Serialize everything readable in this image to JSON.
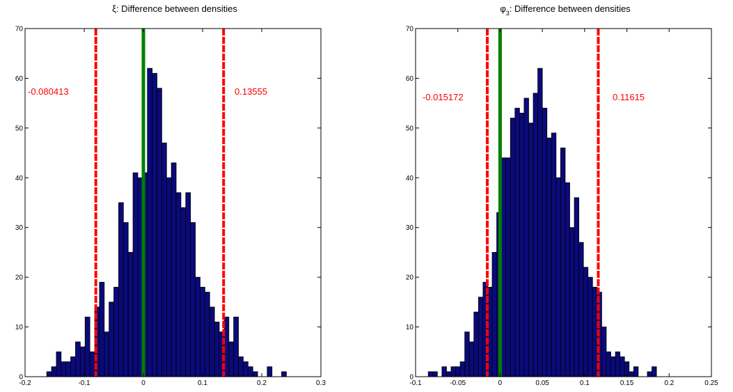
{
  "colors": {
    "bar_fill": "#0a0a7a",
    "bar_edge": "#000000",
    "interval_line": "#ff0000",
    "zero_line": "#008000",
    "axis": "#000000",
    "background": "#ffffff"
  },
  "chart_data": [
    {
      "type": "bar",
      "title": "ξ: Difference between densities",
      "title_symbol": "ξ",
      "title_subscript": "",
      "title_text": ": Difference between densities",
      "xlim": [
        -0.2,
        0.3
      ],
      "ylim": [
        0,
        70
      ],
      "xticks": [
        -0.2,
        -0.1,
        0,
        0.1,
        0.2,
        0.3
      ],
      "xtick_labels": [
        "-0.2",
        "-0.1",
        "0",
        "0.1",
        "0.2",
        "0.3"
      ],
      "yticks": [
        0,
        10,
        20,
        30,
        40,
        50,
        60,
        70
      ],
      "ytick_labels": [
        "0",
        "10",
        "20",
        "30",
        "40",
        "50",
        "60",
        "70"
      ],
      "bin_width": 0.0081,
      "bin_centers": [
        -0.1674,
        -0.1593,
        -0.1512,
        -0.1431,
        -0.135,
        -0.1269,
        -0.1188,
        -0.1107,
        -0.1026,
        -0.0945,
        -0.0864,
        -0.0783,
        -0.0702,
        -0.0621,
        -0.054,
        -0.0459,
        -0.0378,
        -0.0297,
        -0.0216,
        -0.0135,
        -0.0054,
        0.0027,
        0.0108,
        0.0189,
        0.027,
        0.0351,
        0.0432,
        0.0513,
        0.0594,
        0.0675,
        0.0756,
        0.0837,
        0.0918,
        0.0999,
        0.108,
        0.1161,
        0.1242,
        0.1323,
        0.1404,
        0.1485,
        0.1566,
        0.1647,
        0.1728,
        0.1809,
        0.189,
        0.1971,
        0.2052,
        0.2133,
        0.2214,
        0.2295,
        0.2376
      ],
      "values": [
        0,
        1,
        2,
        5,
        3,
        3,
        4,
        7,
        6,
        12,
        5,
        14,
        19,
        9,
        15,
        18,
        35,
        31,
        25,
        41,
        40,
        41,
        62,
        61,
        58,
        47,
        40,
        43,
        37,
        34,
        37,
        31,
        20,
        18,
        17,
        14,
        11,
        9,
        12,
        7,
        12,
        4,
        3,
        2,
        1,
        0,
        0,
        2,
        0,
        0,
        1
      ],
      "annotations": [
        {
          "text": "-0.080413",
          "x": -0.080413,
          "color": "red",
          "line_style": "dashed"
        },
        {
          "text": "0.13555",
          "x": 0.13555,
          "color": "red",
          "line_style": "dashed"
        }
      ],
      "reference_line": {
        "x": 0,
        "color": "green"
      }
    },
    {
      "type": "bar",
      "title": "φ₃: Difference between densities",
      "title_symbol": "φ",
      "title_subscript": "3",
      "title_text": ": Difference between densities",
      "xlim": [
        -0.1,
        0.25
      ],
      "ylim": [
        0,
        70
      ],
      "xticks": [
        -0.1,
        -0.05,
        0,
        0.05,
        0.1,
        0.15,
        0.2,
        0.25
      ],
      "xtick_labels": [
        "-0.1",
        "-0.05",
        "0",
        "0.05",
        "0.1",
        "0.15",
        "0.2",
        "0.25"
      ],
      "yticks": [
        0,
        10,
        20,
        30,
        40,
        50,
        60,
        70
      ],
      "ytick_labels": [
        "0",
        "10",
        "20",
        "30",
        "40",
        "50",
        "60",
        "70"
      ],
      "bin_width": 0.0054,
      "bin_centers": [
        -0.0823,
        -0.0769,
        -0.0715,
        -0.0661,
        -0.0607,
        -0.0553,
        -0.0499,
        -0.0445,
        -0.0391,
        -0.0337,
        -0.0283,
        -0.0229,
        -0.0175,
        -0.0121,
        -0.0067,
        -0.0013,
        0.0041,
        0.0095,
        0.0149,
        0.0203,
        0.0257,
        0.0311,
        0.0365,
        0.0419,
        0.0473,
        0.0527,
        0.0581,
        0.0635,
        0.0689,
        0.0743,
        0.0797,
        0.0851,
        0.0905,
        0.0959,
        0.1013,
        0.1067,
        0.1121,
        0.1175,
        0.1229,
        0.1283,
        0.1337,
        0.1391,
        0.1445,
        0.1499,
        0.1553,
        0.1607,
        0.1661,
        0.1715,
        0.1769,
        0.1823,
        0.1877
      ],
      "values": [
        1,
        1,
        0,
        2,
        1,
        2,
        2,
        3,
        9,
        7,
        13,
        16,
        19,
        18,
        25,
        33,
        44,
        44,
        52,
        54,
        53,
        56,
        51,
        57,
        62,
        54,
        48,
        49,
        40,
        46,
        39,
        30,
        36,
        27,
        22,
        20,
        18,
        17,
        10,
        5,
        4,
        5,
        4,
        3,
        1,
        2,
        0,
        0,
        1,
        2,
        0
      ],
      "annotations": [
        {
          "text": "-0.015172",
          "x": -0.015172,
          "color": "red",
          "line_style": "dashed"
        },
        {
          "text": "0.11615",
          "x": 0.11615,
          "color": "red",
          "line_style": "dashed"
        }
      ],
      "reference_line": {
        "x": 0,
        "color": "green"
      }
    }
  ]
}
